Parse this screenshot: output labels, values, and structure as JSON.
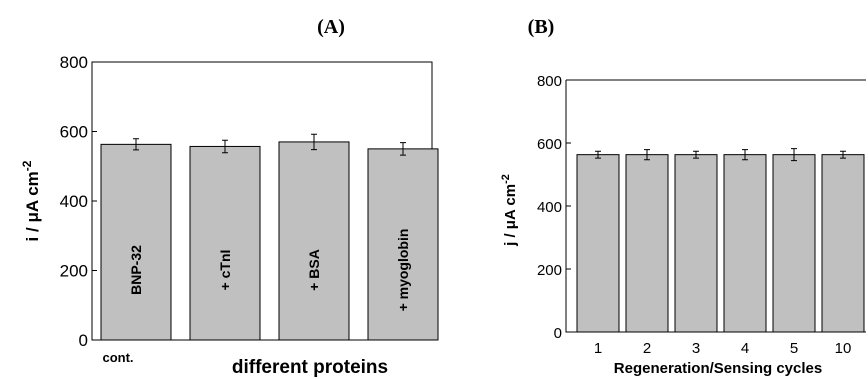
{
  "chart_data": [
    {
      "type": "bar",
      "panel_label": "(A)",
      "categories": [
        "BNP-32",
        "+ cTnI",
        "+ BSA",
        "+ myoglobin"
      ],
      "values": [
        563,
        557,
        570,
        550
      ],
      "errors": [
        16,
        18,
        22,
        18
      ],
      "ylabel_main": "i / μA cm",
      "ylabel_sup": "-2",
      "xlabel": "different proteins",
      "extra_label": "cont.",
      "ylim": [
        0,
        800
      ],
      "yticks": [
        0,
        200,
        400,
        600,
        800
      ],
      "bar_color": "#c0c0c0",
      "grid": false
    },
    {
      "type": "bar",
      "panel_label": "(B)",
      "categories": [
        "1",
        "2",
        "3",
        "4",
        "5",
        "10"
      ],
      "values": [
        563,
        563,
        563,
        563,
        563,
        563
      ],
      "errors": [
        11,
        16,
        11,
        16,
        19,
        11
      ],
      "ylabel_main": "j / μA cm",
      "ylabel_sup": "-2",
      "xlabel": "Regeneration/Sensing cycles",
      "ylim": [
        0,
        800
      ],
      "yticks": [
        0,
        200,
        400,
        600,
        800
      ],
      "bar_color": "#c0c0c0",
      "grid": false
    }
  ]
}
